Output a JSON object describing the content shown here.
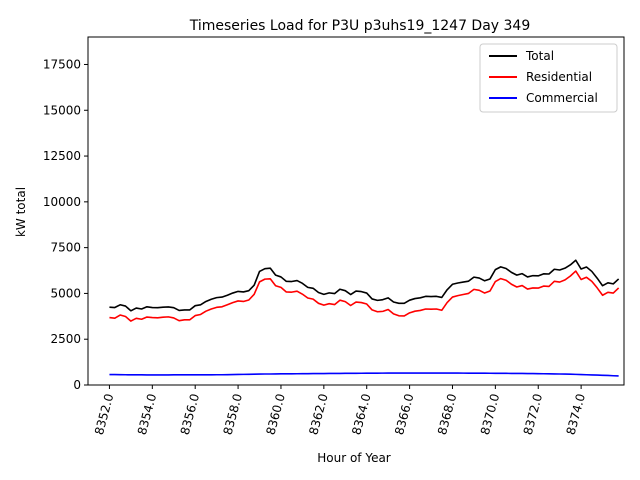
{
  "chart_data": {
    "type": "line",
    "title": "Timeseries Load for P3U p3uhs19_1247  Day 349",
    "xlabel": "Hour of Year",
    "ylabel": "kW total",
    "xlim": [
      8351.0,
      8376.0
    ],
    "ylim": [
      0,
      19000
    ],
    "x_ticks": [
      8352.0,
      8354.0,
      8356.0,
      8358.0,
      8360.0,
      8362.0,
      8364.0,
      8366.0,
      8368.0,
      8370.0,
      8372.0,
      8374.0
    ],
    "x_tick_labels": [
      "8352.0",
      "8354.0",
      "8356.0",
      "8358.0",
      "8360.0",
      "8362.0",
      "8364.0",
      "8366.0",
      "8368.0",
      "8370.0",
      "8372.0",
      "8374.0"
    ],
    "y_ticks": [
      0,
      2500,
      5000,
      7500,
      10000,
      12500,
      15000,
      17500
    ],
    "y_tick_labels": [
      "0",
      "2500",
      "5000",
      "7500",
      "10000",
      "12500",
      "15000",
      "17500"
    ],
    "legend_position": "top-right",
    "grid": false,
    "x": [
      8352.0,
      8352.25,
      8352.5,
      8352.75,
      8353.0,
      8353.25,
      8353.5,
      8353.75,
      8354.0,
      8354.25,
      8354.5,
      8354.75,
      8355.0,
      8355.25,
      8355.5,
      8355.75,
      8356.0,
      8356.25,
      8356.5,
      8356.75,
      8357.0,
      8357.25,
      8357.5,
      8357.75,
      8358.0,
      8358.25,
      8358.5,
      8358.75,
      8359.0,
      8359.25,
      8359.5,
      8359.75,
      8360.0,
      8360.25,
      8360.5,
      8360.75,
      8361.0,
      8361.25,
      8361.5,
      8361.75,
      8362.0,
      8362.25,
      8362.5,
      8362.75,
      8363.0,
      8363.25,
      8363.5,
      8363.75,
      8364.0,
      8364.25,
      8364.5,
      8364.75,
      8365.0,
      8365.25,
      8365.5,
      8365.75,
      8366.0,
      8366.25,
      8366.5,
      8366.75,
      8367.0,
      8367.25,
      8367.5,
      8367.75,
      8368.0,
      8368.25,
      8368.5,
      8368.75,
      8369.0,
      8369.25,
      8369.5,
      8369.75,
      8370.0,
      8370.25,
      8370.5,
      8370.75,
      8371.0,
      8371.25,
      8371.5,
      8371.75,
      8372.0,
      8372.25,
      8372.5,
      8372.75,
      8373.0,
      8373.25,
      8373.5,
      8373.75,
      8374.0,
      8374.25,
      8374.5,
      8374.75,
      8375.0,
      8375.25,
      8375.5,
      8375.75
    ],
    "series": [
      {
        "name": "Total",
        "color": "#000000",
        "values": [
          4250,
          4230,
          4380,
          4310,
          4050,
          4200,
          4150,
          4270,
          4230,
          4220,
          4250,
          4260,
          4220,
          4070,
          4100,
          4100,
          4330,
          4380,
          4560,
          4680,
          4770,
          4800,
          4900,
          5020,
          5110,
          5080,
          5150,
          5450,
          6200,
          6350,
          6380,
          6000,
          5900,
          5660,
          5650,
          5700,
          5550,
          5330,
          5280,
          5050,
          4950,
          5030,
          4990,
          5230,
          5150,
          4940,
          5130,
          5100,
          5020,
          4700,
          4620,
          4660,
          4760,
          4530,
          4460,
          4460,
          4630,
          4720,
          4760,
          4840,
          4830,
          4840,
          4780,
          5200,
          5500,
          5570,
          5620,
          5670,
          5890,
          5840,
          5690,
          5790,
          6300,
          6450,
          6360,
          6150,
          6000,
          6080,
          5900,
          5970,
          5960,
          6070,
          6060,
          6320,
          6280,
          6380,
          6560,
          6810,
          6330,
          6440,
          6200,
          5830,
          5420,
          5580,
          5520,
          5790
        ]
      },
      {
        "name": "Residential",
        "color": "#ff0000",
        "values": [
          3680,
          3650,
          3820,
          3740,
          3490,
          3640,
          3590,
          3710,
          3680,
          3670,
          3700,
          3720,
          3660,
          3510,
          3560,
          3560,
          3790,
          3850,
          4030,
          4150,
          4240,
          4270,
          4380,
          4500,
          4590,
          4560,
          4640,
          4950,
          5630,
          5780,
          5800,
          5420,
          5330,
          5080,
          5070,
          5120,
          4960,
          4750,
          4690,
          4460,
          4360,
          4440,
          4390,
          4630,
          4550,
          4340,
          4530,
          4500,
          4420,
          4100,
          4000,
          4020,
          4120,
          3880,
          3780,
          3770,
          3940,
          4030,
          4070,
          4150,
          4140,
          4150,
          4080,
          4500,
          4800,
          4880,
          4940,
          5000,
          5220,
          5170,
          5020,
          5130,
          5650,
          5810,
          5720,
          5500,
          5350,
          5430,
          5240,
          5300,
          5290,
          5400,
          5380,
          5660,
          5620,
          5740,
          5950,
          6220,
          5760,
          5880,
          5660,
          5300,
          4900,
          5060,
          5020,
          5300
        ]
      },
      {
        "name": "Commercial",
        "color": "#0000ff",
        "values": [
          570,
          570,
          565,
          560,
          555,
          555,
          555,
          550,
          550,
          550,
          550,
          550,
          555,
          555,
          555,
          555,
          555,
          555,
          555,
          555,
          560,
          560,
          565,
          570,
          575,
          580,
          585,
          590,
          595,
          600,
          600,
          605,
          610,
          610,
          612,
          615,
          618,
          620,
          622,
          625,
          627,
          630,
          632,
          634,
          636,
          638,
          640,
          642,
          643,
          645,
          647,
          648,
          650,
          651,
          652,
          653,
          654,
          654,
          654,
          654,
          654,
          653,
          652,
          651,
          650,
          649,
          648,
          647,
          646,
          645,
          643,
          641,
          640,
          638,
          636,
          634,
          632,
          630,
          627,
          624,
          620,
          615,
          610,
          605,
          600,
          595,
          588,
          580,
          570,
          560,
          550,
          540,
          530,
          520,
          505,
          495
        ]
      }
    ]
  }
}
